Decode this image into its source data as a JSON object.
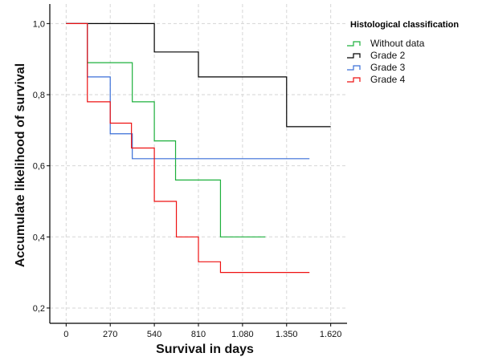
{
  "chart_data": {
    "type": "line",
    "subtype": "step (Kaplan-Meier)",
    "xlabel": "Survival in days",
    "ylabel": "Accumulate likelihood of survival",
    "xlim": [
      -100,
      1720
    ],
    "ylim": [
      0.157,
      1.055
    ],
    "x_ticks": [
      0,
      270,
      540,
      810,
      1080,
      1350,
      1620
    ],
    "x_tick_labels": [
      "0",
      "270",
      "540",
      "810",
      "1.080",
      "1.350",
      "1.620"
    ],
    "y_ticks": [
      0.2,
      0.4,
      0.6,
      0.8,
      1.0
    ],
    "y_tick_labels": [
      "0,2",
      "0,4",
      "0,6",
      "0,8",
      "1,0"
    ],
    "grid": true,
    "legend": {
      "title": "Histological classification",
      "placement": "right"
    },
    "series": [
      {
        "name": "Without data",
        "color": "#1db03c",
        "x": [
          0,
          130,
          405,
          540,
          670,
          945,
          1220
        ],
        "y": [
          1.0,
          0.89,
          0.78,
          0.67,
          0.56,
          0.4,
          0.4
        ]
      },
      {
        "name": "Grade 2",
        "color": "#000000",
        "x": [
          0,
          540,
          810,
          1350,
          1620
        ],
        "y": [
          1.0,
          0.92,
          0.85,
          0.71,
          0.71
        ]
      },
      {
        "name": "Grade 3",
        "color": "#3a6fd8",
        "x": [
          0,
          130,
          270,
          405,
          1490
        ],
        "y": [
          1.0,
          0.85,
          0.69,
          0.62,
          0.62
        ]
      },
      {
        "name": "Grade 4",
        "color": "#ee1111",
        "x": [
          0,
          130,
          270,
          400,
          540,
          675,
          810,
          945,
          1490
        ],
        "y": [
          1.0,
          0.78,
          0.72,
          0.65,
          0.5,
          0.4,
          0.33,
          0.3,
          0.3
        ]
      }
    ]
  }
}
